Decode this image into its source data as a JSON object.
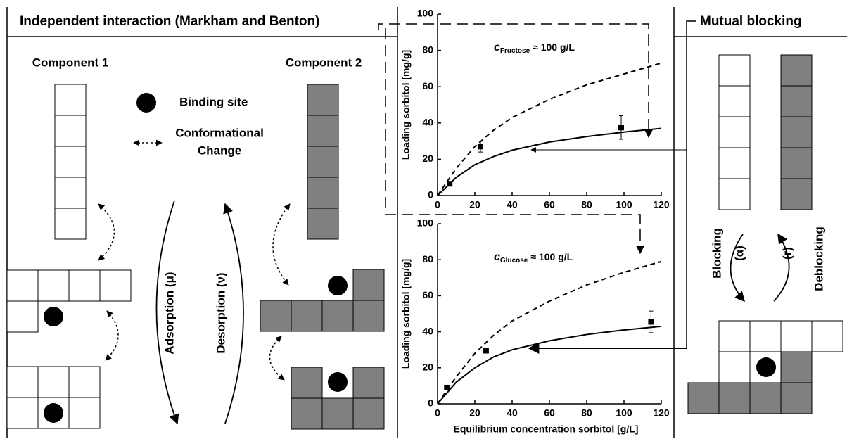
{
  "left_panel": {
    "title": "Independent interaction (Markham and Benton)",
    "component_1": "Component 1",
    "component_2": "Component 2",
    "binding_site": "Binding site",
    "conformational_change": [
      "Conformational",
      "Change"
    ],
    "adsorption": "Adsorption (μ)",
    "desorption": "Desorption (ν)"
  },
  "right_panel": {
    "title": "Mutual blocking",
    "blocking": "Blocking",
    "alpha": "(α)",
    "r": "(r)",
    "deblocking": "Deblocking"
  },
  "chart_data": [
    {
      "type": "line",
      "ylabel": "Loading sorbitol [mg/g]",
      "annotation": {
        "symbol": "c",
        "subscript": "Fructose",
        "text": "≈ 100 g/L"
      },
      "xlim": [
        0,
        120
      ],
      "ylim": [
        0,
        100
      ],
      "xticks": [
        0,
        20,
        40,
        60,
        80,
        100,
        120
      ],
      "yticks": [
        0,
        20,
        40,
        60,
        80,
        100
      ],
      "points": {
        "x": [
          6.5,
          23,
          98.5
        ],
        "y": [
          6.5,
          27,
          37.5
        ],
        "yerr": [
          1,
          3,
          6.5
        ]
      },
      "solid_line": {
        "x": [
          0,
          10,
          20,
          30,
          40,
          60,
          80,
          100,
          120
        ],
        "y": [
          0,
          10,
          17,
          21.5,
          25,
          29.5,
          32.5,
          35,
          37
        ]
      },
      "dashed_line": {
        "x": [
          0,
          10,
          20,
          30,
          40,
          60,
          80,
          100,
          120
        ],
        "y": [
          0,
          15,
          27,
          36,
          43,
          53,
          61,
          67,
          73
        ]
      }
    },
    {
      "type": "line",
      "ylabel": "Loading sorbitol [mg/g]",
      "xlabel": "Equilibrium concentration sorbitol [g/L]",
      "annotation": {
        "symbol": "c",
        "subscript": "Glucose",
        "text": "≈ 100 g/L"
      },
      "xlim": [
        0,
        120
      ],
      "ylim": [
        0,
        100
      ],
      "xticks": [
        0,
        20,
        40,
        60,
        80,
        100,
        120
      ],
      "yticks": [
        0,
        20,
        40,
        60,
        80,
        100
      ],
      "points": {
        "x": [
          5,
          26,
          114.5
        ],
        "y": [
          9,
          29.5,
          45.5
        ],
        "yerr": [
          1,
          1,
          6
        ]
      },
      "solid_line": {
        "x": [
          0,
          10,
          20,
          30,
          40,
          60,
          80,
          100,
          120
        ],
        "y": [
          0,
          12,
          20,
          26,
          30,
          35,
          38.5,
          41,
          43
        ]
      },
      "dashed_line": {
        "x": [
          0,
          10,
          20,
          30,
          40,
          60,
          80,
          100,
          120
        ],
        "y": [
          0,
          15,
          28,
          38,
          46,
          57,
          66,
          73,
          79
        ]
      }
    }
  ]
}
